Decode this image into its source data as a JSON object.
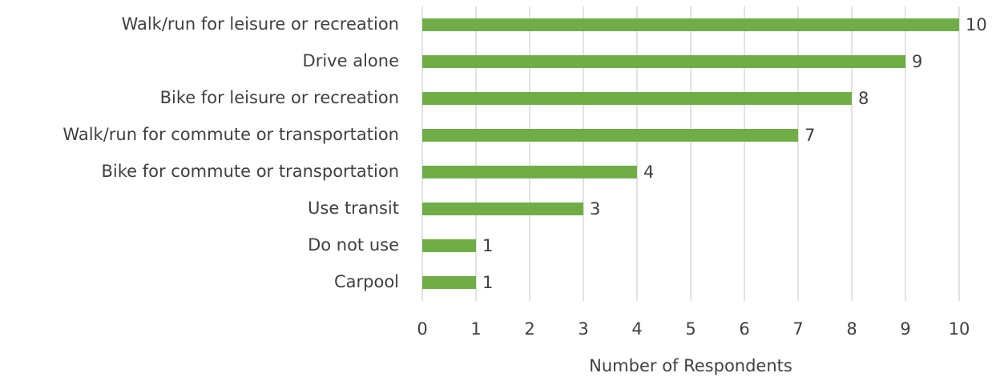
{
  "chart_data": {
    "type": "bar",
    "orientation": "horizontal",
    "x_label": "Number of Respondents",
    "categories": [
      "Walk/run for leisure or recreation",
      "Drive alone",
      "Bike for leisure or recreation",
      "Walk/run for commute or transportation",
      "Bike for commute or transportation",
      "Use transit",
      "Do not use",
      "Carpool"
    ],
    "values": [
      10,
      9,
      8,
      7,
      4,
      3,
      1,
      1
    ],
    "color": "#70ad47",
    "xlim": [
      0,
      10
    ],
    "xticks": [
      0,
      1,
      2,
      3,
      4,
      5,
      6,
      7,
      8,
      9,
      10
    ],
    "grid": true
  }
}
